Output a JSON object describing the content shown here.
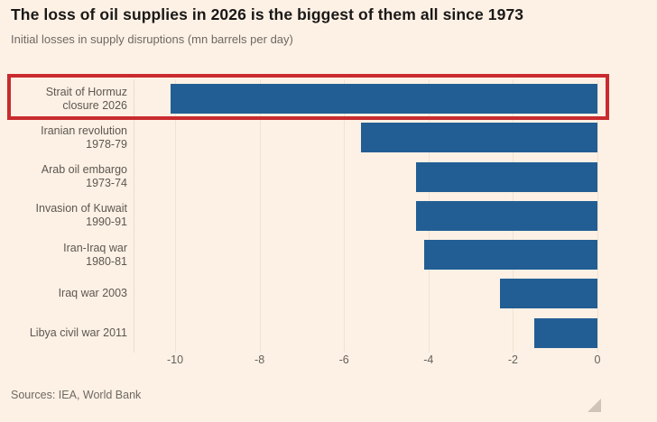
{
  "header": {
    "title": "The loss of oil supplies in 2026 is the biggest of them all since 1973",
    "subtitle": "Initial losses in supply disruptions (mn barrels per day)"
  },
  "chart_data": {
    "type": "bar",
    "orientation": "horizontal",
    "title": "The loss of oil supplies in 2026 is the biggest of them all since 1973",
    "subtitle": "Initial losses in supply disruptions (mn barrels per day)",
    "xlabel": "",
    "ylabel": "",
    "categories": [
      "Strait of Hormuz closure 2026",
      "Iranian revolution 1978-79",
      "Arab oil embargo 1973-74",
      "Invasion of Kuwait 1990-91",
      "Iran-Iraq war 1980-81",
      "Iraq war 2003",
      "Libya civil war 2011"
    ],
    "label_lines": [
      [
        "Strait of Hormuz",
        "closure 2026"
      ],
      [
        "Iranian revolution",
        "1978-79"
      ],
      [
        "Arab oil embargo",
        "1973-74"
      ],
      [
        "Invasion of Kuwait",
        "1990-91"
      ],
      [
        "Iran-Iraq war",
        "1980-81"
      ],
      [
        "Iraq war 2003"
      ],
      [
        "Libya civil war 2011"
      ]
    ],
    "values": [
      -10.1,
      -5.6,
      -4.3,
      -4.3,
      -4.1,
      -2.3,
      -1.5
    ],
    "xticks": [
      -10,
      -8,
      -6,
      -4,
      -2,
      0
    ],
    "xtick_labels": [
      "-10",
      "-8",
      "-6",
      "-4",
      "-2",
      "0"
    ],
    "xlim": [
      -11,
      0
    ],
    "grid": "vertical",
    "legend": "none",
    "highlight": {
      "index": 0,
      "style": "red-outline-box"
    }
  },
  "colors": {
    "background": "#FDF1E5",
    "bar": "#225E94",
    "highlight_box": "#C92B2F",
    "title_text": "#1A1817",
    "muted_text": "#6F6862",
    "gridline": "#F2E2D2"
  },
  "footer": {
    "sources": "Sources: IEA, World Bank"
  },
  "icons": {
    "resize_handle": "resize-handle-icon"
  }
}
